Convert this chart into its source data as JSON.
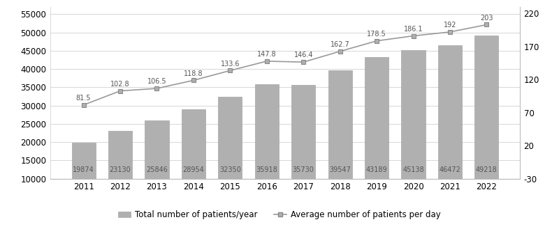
{
  "years": [
    2011,
    2012,
    2013,
    2014,
    2015,
    2016,
    2017,
    2018,
    2019,
    2020,
    2021,
    2022
  ],
  "bar_values": [
    19874,
    23130,
    25846,
    28954,
    32350,
    35918,
    35730,
    39547,
    43189,
    45138,
    46472,
    49218
  ],
  "line_values": [
    81.5,
    102.8,
    106.5,
    118.8,
    133.6,
    147.8,
    146.4,
    162.7,
    178.5,
    186.1,
    192,
    203
  ],
  "bar_color": "#b0b0b0",
  "bar_edgecolor": "#999999",
  "line_color": "#999999",
  "marker_color": "#888888",
  "marker_face": "#b0b0b0",
  "left_ylim": [
    10000,
    57000
  ],
  "left_yticks": [
    10000,
    15000,
    20000,
    25000,
    30000,
    35000,
    40000,
    45000,
    50000,
    55000
  ],
  "right_ylim": [
    -30,
    230
  ],
  "right_yticks": [
    -30,
    20,
    70,
    120,
    170,
    220
  ],
  "legend_bar_label": "Total number of patients/year",
  "legend_line_label": "Average number of patients per day",
  "bar_label_fontsize": 7,
  "line_label_fontsize": 7,
  "tick_fontsize": 8.5,
  "legend_fontsize": 8.5,
  "background_color": "#ffffff",
  "grid_color": "#d0d0d0",
  "label_text_color": "#555555"
}
